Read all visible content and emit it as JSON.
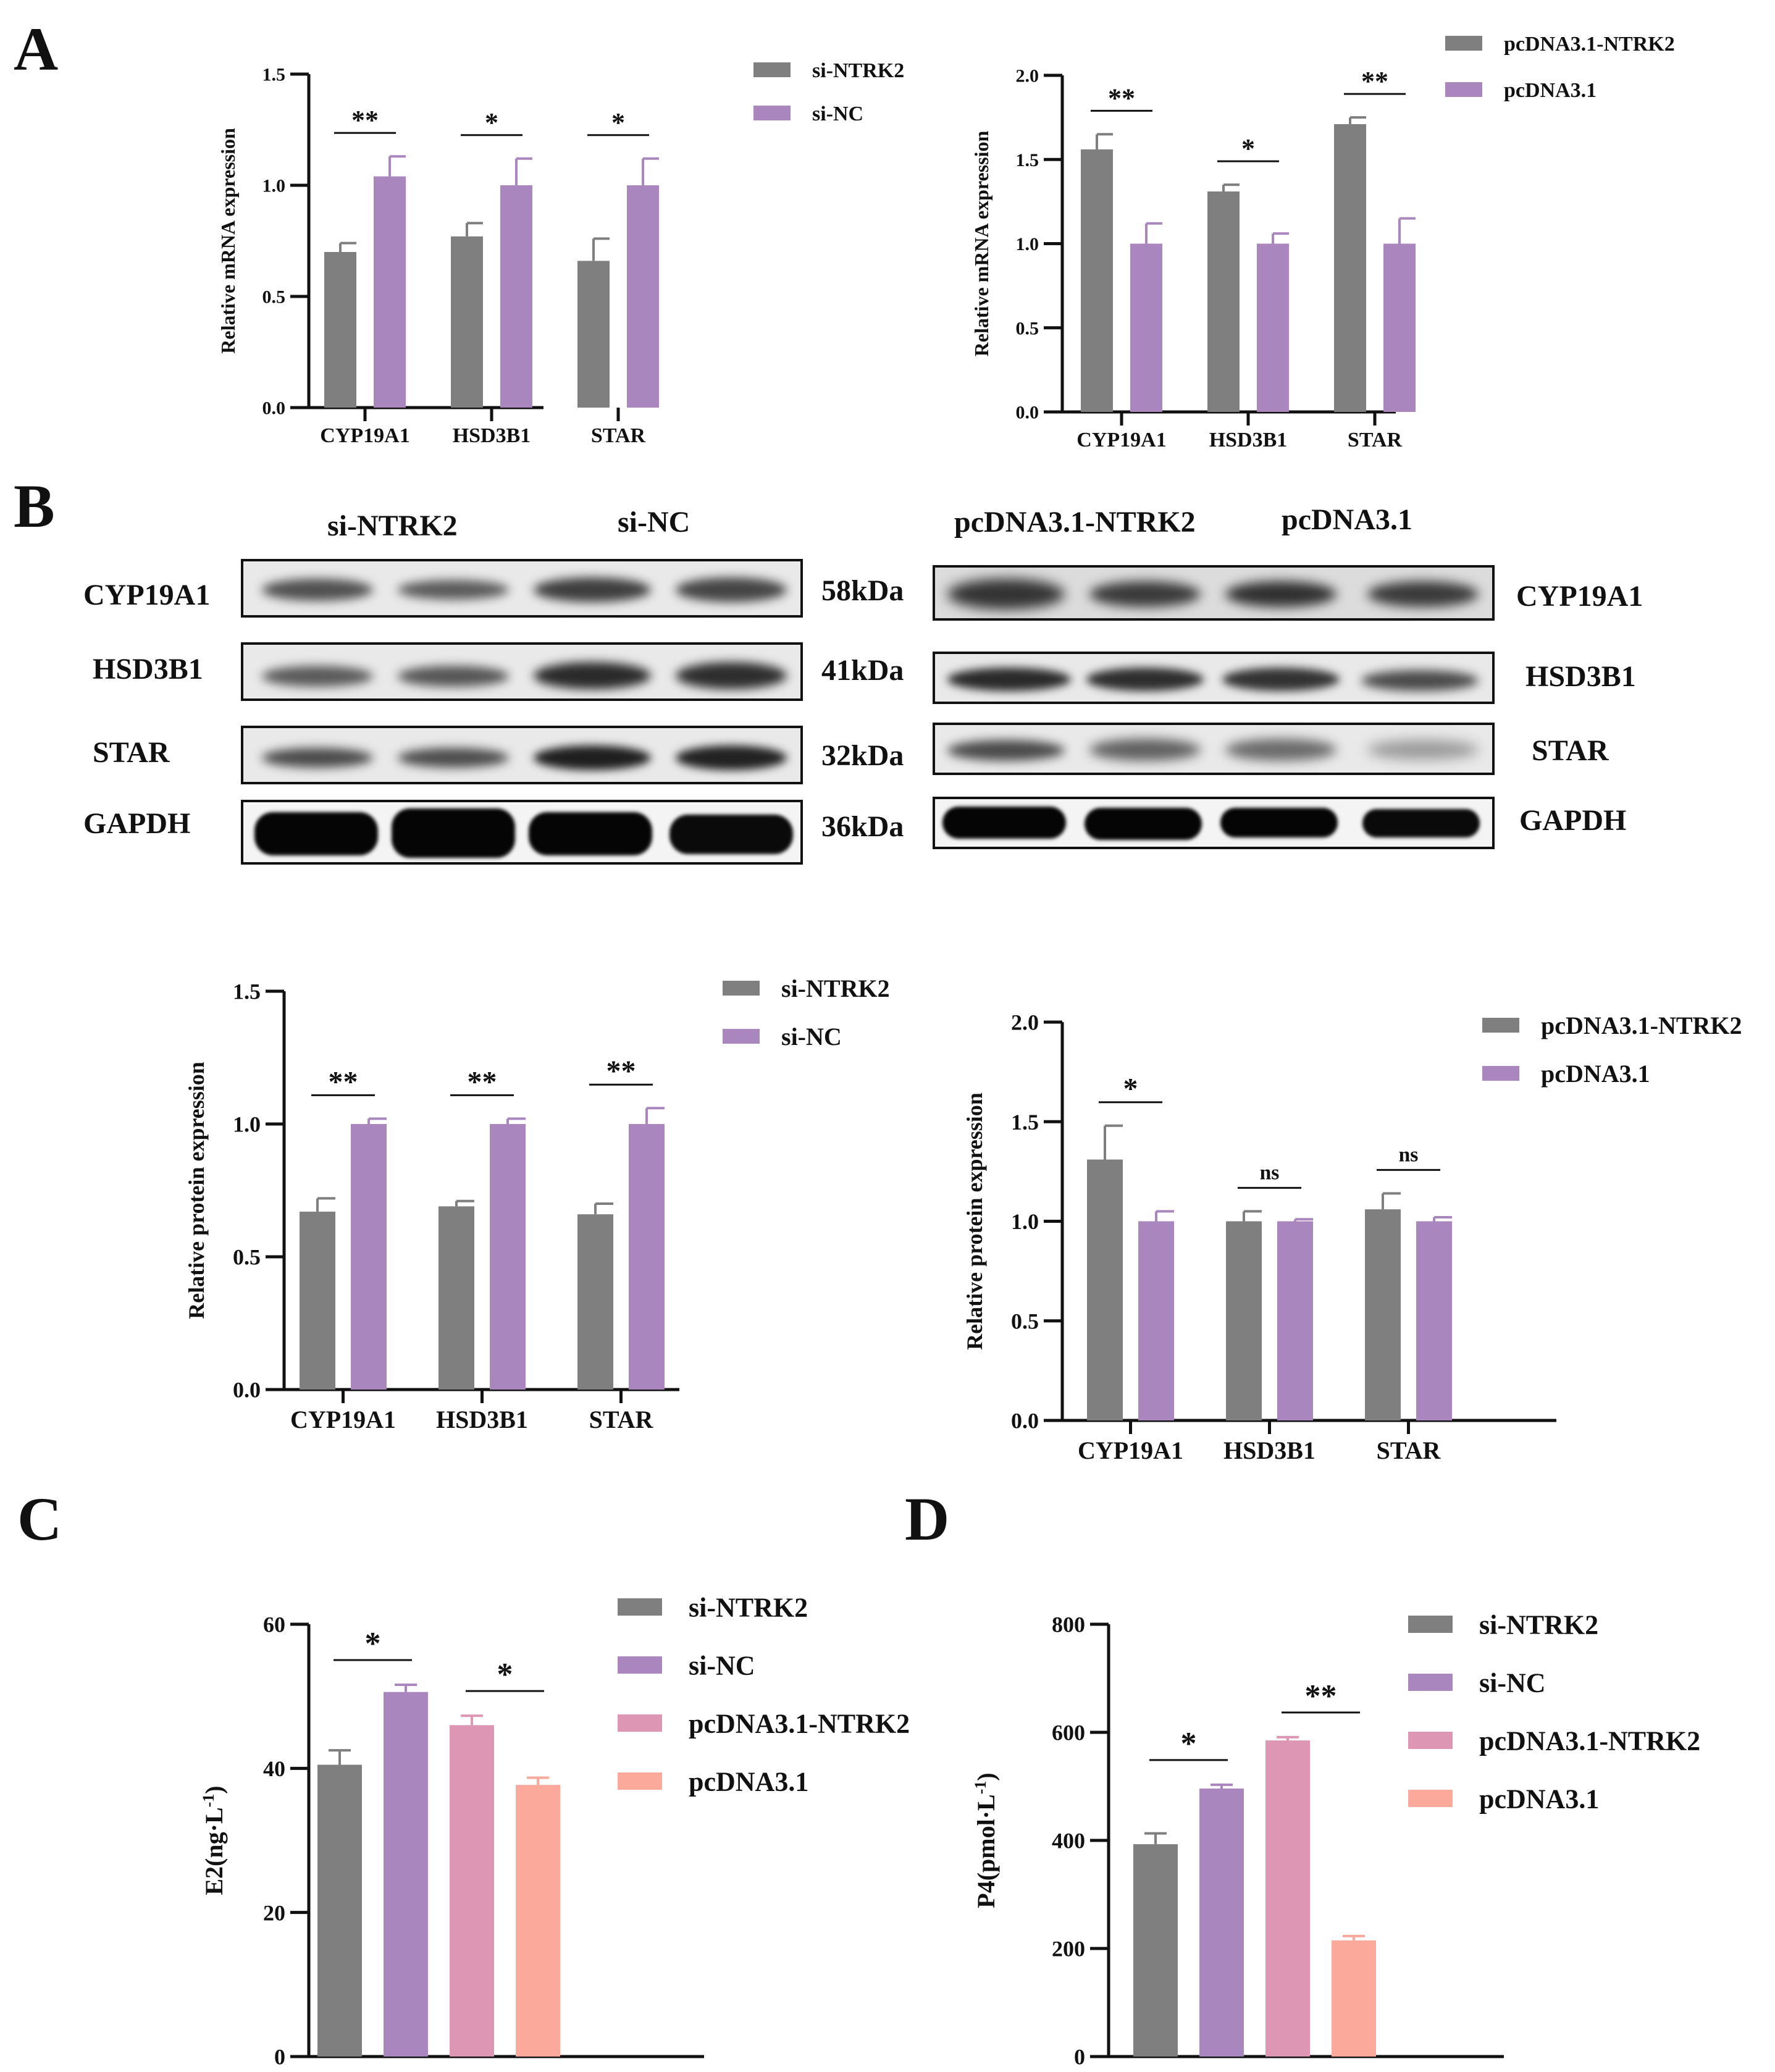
{
  "panels": {
    "A": "A",
    "B": "B",
    "C": "C",
    "D": "D"
  },
  "colors": {
    "gray": "#7f7f7f",
    "purple": "#a986bd",
    "pink": "#de96b5",
    "salmon": "#fba99b"
  },
  "chart_data": [
    {
      "id": "a_left",
      "type": "bar",
      "ylabel": "Relative mRNA expression",
      "ylim": [
        0,
        1.5
      ],
      "ticks": [
        "0.0",
        "0.5",
        "1.0",
        "1.5"
      ],
      "tick_values": [
        0,
        0.5,
        1.0,
        1.5
      ],
      "categories": [
        "CYP19A1",
        "HSD3B1",
        "STAR"
      ],
      "series": [
        {
          "name": "si-NTRK2",
          "color": "gray",
          "values": [
            0.7,
            0.77,
            0.66
          ],
          "errors": [
            0.04,
            0.06,
            0.1
          ]
        },
        {
          "name": "si-NC",
          "color": "purple",
          "values": [
            1.04,
            1.0,
            1.0
          ],
          "errors": [
            0.09,
            0.12,
            0.12
          ]
        }
      ],
      "significance": [
        "**",
        "*",
        "*"
      ],
      "legend": "top-right"
    },
    {
      "id": "a_right",
      "type": "bar",
      "ylabel": "Relative mRNA expression",
      "ylim": [
        0,
        2.0
      ],
      "ticks": [
        "0.0",
        "0.5",
        "1.0",
        "1.5",
        "2.0"
      ],
      "tick_values": [
        0,
        0.5,
        1.0,
        1.5,
        2.0
      ],
      "categories": [
        "CYP19A1",
        "HSD3B1",
        "STAR"
      ],
      "series": [
        {
          "name": "pcDNA3.1-NTRK2",
          "color": "gray",
          "values": [
            1.56,
            1.31,
            1.71
          ],
          "errors": [
            0.09,
            0.04,
            0.04
          ]
        },
        {
          "name": "pcDNA3.1",
          "color": "purple",
          "values": [
            1.0,
            1.0,
            1.0
          ],
          "errors": [
            0.12,
            0.06,
            0.15
          ]
        }
      ],
      "significance": [
        "**",
        "*",
        "**"
      ],
      "legend": "top-right"
    },
    {
      "id": "b_left",
      "type": "bar",
      "ylabel": "Relative protein expression",
      "ylim": [
        0,
        1.5
      ],
      "ticks": [
        "0.0",
        "0.5",
        "1.0",
        "1.5"
      ],
      "tick_values": [
        0,
        0.5,
        1.0,
        1.5
      ],
      "categories": [
        "CYP19A1",
        "HSD3B1",
        "STAR"
      ],
      "series": [
        {
          "name": "si-NTRK2",
          "color": "gray",
          "values": [
            0.67,
            0.69,
            0.66
          ],
          "errors": [
            0.05,
            0.02,
            0.04
          ]
        },
        {
          "name": "si-NC",
          "color": "purple",
          "values": [
            1.0,
            1.0,
            1.0
          ],
          "errors": [
            0.02,
            0.02,
            0.06
          ]
        }
      ],
      "significance": [
        "**",
        "**",
        "**"
      ],
      "legend": "top-right"
    },
    {
      "id": "b_right",
      "type": "bar",
      "ylabel": "Relative protein expression",
      "ylim": [
        0,
        2.0
      ],
      "ticks": [
        "0.0",
        "0.5",
        "1.0",
        "1.5",
        "2.0"
      ],
      "tick_values": [
        0,
        0.5,
        1.0,
        1.5,
        2.0
      ],
      "categories": [
        "CYP19A1",
        "HSD3B1",
        "STAR"
      ],
      "series": [
        {
          "name": "pcDNA3.1-NTRK2",
          "color": "gray",
          "values": [
            1.31,
            1.0,
            1.06
          ],
          "errors": [
            0.17,
            0.05,
            0.08
          ]
        },
        {
          "name": "pcDNA3.1",
          "color": "purple",
          "values": [
            1.0,
            1.0,
            1.0
          ],
          "errors": [
            0.05,
            0.01,
            0.02
          ]
        }
      ],
      "significance": [
        "*",
        "ns",
        "ns"
      ],
      "legend": "top-right"
    },
    {
      "id": "c",
      "type": "bar",
      "ylabel": "E2(ng·L",
      "ylabel_sup": "-1",
      "ylabel_end": ")",
      "ylim": [
        0,
        60
      ],
      "ticks": [
        "0",
        "20",
        "40",
        "60"
      ],
      "tick_values": [
        0,
        20,
        40,
        60
      ],
      "categories": [
        "si-NTRK2",
        "si-NC",
        "pcDNA3.1-NTRK2",
        "pcDNA3.1"
      ],
      "series": [
        {
          "name": "E2",
          "values": [
            40.5,
            50.6,
            46.0,
            37.7
          ],
          "errors": [
            2.0,
            1.0,
            1.3,
            1.0
          ],
          "colors": [
            "gray",
            "purple",
            "pink",
            "salmon"
          ]
        }
      ],
      "significance": [
        {
          "pair": [
            0,
            1
          ],
          "label": "*"
        },
        {
          "pair": [
            2,
            3
          ],
          "label": "*"
        }
      ],
      "legend": "top-right"
    },
    {
      "id": "d",
      "type": "bar",
      "ylabel": "P4(pmol·L",
      "ylabel_sup": "-1",
      "ylabel_end": ")",
      "ylim": [
        0,
        800
      ],
      "ticks": [
        "0",
        "200",
        "400",
        "600",
        "800"
      ],
      "tick_values": [
        0,
        200,
        400,
        600,
        800
      ],
      "categories": [
        "si-NTRK2",
        "si-NC",
        "pcDNA3.1-NTRK2",
        "pcDNA3.1"
      ],
      "series": [
        {
          "name": "P4",
          "values": [
            393,
            496,
            585,
            215
          ],
          "errors": [
            20,
            7,
            6,
            8
          ],
          "colors": [
            "gray",
            "purple",
            "pink",
            "salmon"
          ]
        }
      ],
      "significance": [
        {
          "pair": [
            0,
            1
          ],
          "label": "*"
        },
        {
          "pair": [
            2,
            3
          ],
          "label": "**"
        }
      ],
      "legend": "top-right"
    }
  ],
  "blot": {
    "left": {
      "group1": "si-NTRK2",
      "group2": "si-NC",
      "proteins": [
        "CYP19A1",
        "HSD3B1",
        "STAR",
        "GAPDH"
      ],
      "sizes": [
        "58kDa",
        "41kDa",
        "32kDa",
        "36kDa"
      ]
    },
    "right": {
      "group1": "pcDNA3.1-NTRK2",
      "group2": "pcDNA3.1",
      "proteins": [
        "CYP19A1",
        "HSD3B1",
        "STAR",
        "GAPDH"
      ]
    }
  }
}
